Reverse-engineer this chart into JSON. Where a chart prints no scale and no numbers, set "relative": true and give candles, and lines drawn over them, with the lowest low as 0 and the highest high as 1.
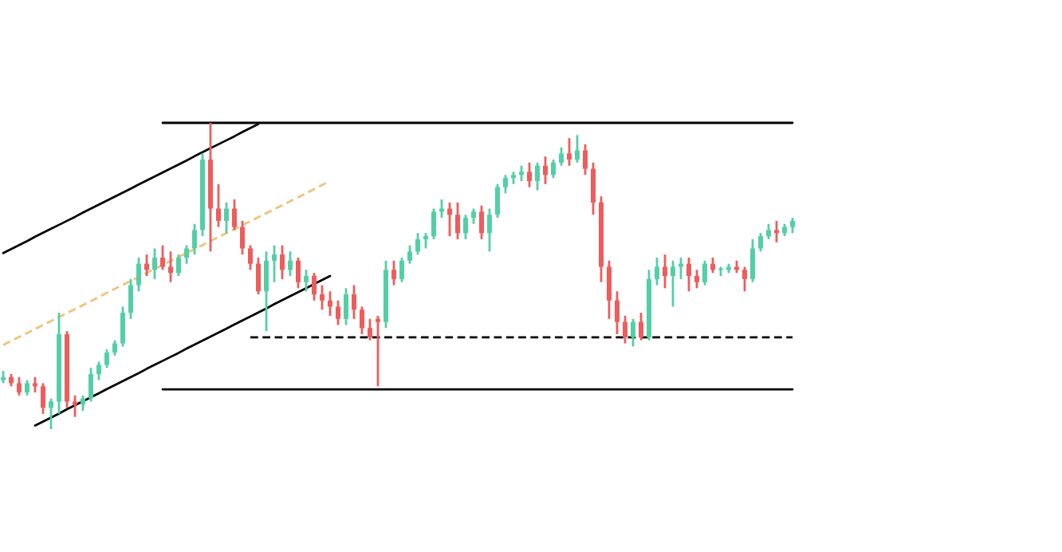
{
  "chart_data": {
    "type": "candlestick",
    "relative": true,
    "tick_labels": false,
    "categories": [
      null,
      null,
      null,
      null,
      null,
      null,
      null,
      null,
      null,
      null,
      null,
      null,
      null,
      null,
      null,
      null,
      null,
      null,
      null,
      null,
      null,
      null,
      null,
      null,
      null,
      null,
      null,
      null,
      null,
      null,
      null,
      null,
      null,
      null,
      null,
      null,
      null,
      null,
      null,
      null,
      null,
      null,
      null,
      null,
      null,
      null,
      null,
      null,
      null,
      null,
      null,
      null,
      null,
      null,
      null,
      null,
      null,
      null,
      null,
      null,
      null,
      null,
      null,
      null,
      null,
      null,
      null,
      null,
      null,
      null,
      null,
      null,
      null,
      null,
      null,
      null,
      null,
      null,
      null,
      null,
      null,
      null,
      null,
      null,
      null,
      null,
      null,
      null,
      null,
      null,
      null,
      null,
      null,
      null,
      null,
      null,
      null,
      null,
      null,
      null
    ],
    "colors": [
      "#53cfa6",
      "#f05b5b",
      "#f05b5b",
      "#53cfa6",
      "#f05b5b",
      "#f05b5b",
      "#53cfa6",
      "#53cfa6",
      "#f05b5b",
      "#f05b5b",
      "#53cfa6",
      "#53cfa6",
      "#53cfa6",
      "#53cfa6",
      "#53cfa6",
      "#53cfa6",
      "#53cfa6",
      "#53cfa6",
      "#f05b5b",
      "#53cfa6",
      "#f05b5b",
      "#f05b5b",
      "#53cfa6",
      "#53cfa6",
      "#53cfa6",
      "#53cfa6",
      "#f05b5b",
      "#f05b5b",
      "#53cfa6",
      "#f05b5b",
      "#f05b5b",
      "#f05b5b",
      "#f05b5b",
      "#53cfa6",
      "#53cfa6",
      "#f05b5b",
      "#53cfa6",
      "#f05b5b",
      "#53cfa6",
      "#f05b5b",
      "#f05b5b",
      "#f05b5b",
      "#f05b5b",
      "#53cfa6",
      "#f05b5b",
      "#f05b5b",
      "#f05b5b",
      "#f05b5b",
      "#53cfa6",
      "#f05b5b",
      "#53cfa6",
      "#53cfa6",
      "#53cfa6",
      "#53cfa6",
      "#53cfa6",
      "#53cfa6",
      "#f05b5b",
      "#f05b5b",
      "#53cfa6",
      "#53cfa6",
      "#f05b5b",
      "#53cfa6",
      "#53cfa6",
      "#53cfa6",
      "#53cfa6",
      "#53cfa6",
      "#f05b5b",
      "#53cfa6",
      "#f05b5b",
      "#53cfa6",
      "#53cfa6",
      "#f05b5b",
      "#53cfa6",
      "#f05b5b",
      "#f05b5b",
      "#f05b5b",
      "#f05b5b",
      "#f05b5b",
      "#f05b5b",
      "#53cfa6",
      "#f05b5b",
      "#53cfa6",
      "#53cfa6",
      "#f05b5b",
      "#53cfa6",
      "#53cfa6",
      "#f05b5b",
      "#f05b5b",
      "#53cfa6",
      "#f05b5b",
      "#53cfa6",
      "#53cfa6",
      "#f05b5b",
      "#f05b5b",
      "#53cfa6",
      "#53cfa6",
      "#53cfa6",
      "#f05b5b",
      "#53cfa6",
      "#53cfa6"
    ],
    "ohlc": [
      [
        0.16,
        0.19,
        0.15,
        0.17
      ],
      [
        0.17,
        0.18,
        0.14,
        0.15
      ],
      [
        0.15,
        0.17,
        0.11,
        0.12
      ],
      [
        0.12,
        0.16,
        0.11,
        0.15
      ],
      [
        0.15,
        0.17,
        0.12,
        0.14
      ],
      [
        0.14,
        0.15,
        0.05,
        0.07
      ],
      [
        0.07,
        0.1,
        0.0,
        0.09
      ],
      [
        0.09,
        0.38,
        0.05,
        0.31
      ],
      [
        0.31,
        0.32,
        0.07,
        0.09
      ],
      [
        0.09,
        0.11,
        0.04,
        0.08
      ],
      [
        0.08,
        0.11,
        0.06,
        0.1
      ],
      [
        0.1,
        0.2,
        0.09,
        0.18
      ],
      [
        0.18,
        0.22,
        0.16,
        0.21
      ],
      [
        0.21,
        0.26,
        0.2,
        0.25
      ],
      [
        0.25,
        0.29,
        0.24,
        0.28
      ],
      [
        0.28,
        0.4,
        0.27,
        0.38
      ],
      [
        0.38,
        0.49,
        0.36,
        0.47
      ],
      [
        0.47,
        0.56,
        0.45,
        0.54
      ],
      [
        0.54,
        0.57,
        0.5,
        0.52
      ],
      [
        0.52,
        0.59,
        0.49,
        0.56
      ],
      [
        0.56,
        0.6,
        0.52,
        0.53
      ],
      [
        0.53,
        0.58,
        0.48,
        0.51
      ],
      [
        0.51,
        0.57,
        0.5,
        0.56
      ],
      [
        0.56,
        0.6,
        0.54,
        0.59
      ],
      [
        0.59,
        0.67,
        0.57,
        0.65
      ],
      [
        0.65,
        0.9,
        0.63,
        0.88
      ],
      [
        0.88,
        1.0,
        0.58,
        0.72
      ],
      [
        0.72,
        0.8,
        0.66,
        0.68
      ],
      [
        0.68,
        0.74,
        0.64,
        0.72
      ],
      [
        0.72,
        0.75,
        0.65,
        0.66
      ],
      [
        0.66,
        0.68,
        0.57,
        0.59
      ],
      [
        0.59,
        0.6,
        0.52,
        0.54
      ],
      [
        0.54,
        0.56,
        0.44,
        0.45
      ],
      [
        0.45,
        0.58,
        0.32,
        0.55
      ],
      [
        0.55,
        0.6,
        0.48,
        0.57
      ],
      [
        0.57,
        0.6,
        0.49,
        0.52
      ],
      [
        0.52,
        0.58,
        0.5,
        0.55
      ],
      [
        0.55,
        0.56,
        0.46,
        0.48
      ],
      [
        0.48,
        0.52,
        0.45,
        0.5
      ],
      [
        0.5,
        0.51,
        0.42,
        0.44
      ],
      [
        0.44,
        0.47,
        0.39,
        0.42
      ],
      [
        0.42,
        0.45,
        0.37,
        0.4
      ],
      [
        0.4,
        0.42,
        0.34,
        0.36
      ],
      [
        0.36,
        0.46,
        0.34,
        0.44
      ],
      [
        0.44,
        0.47,
        0.36,
        0.39
      ],
      [
        0.39,
        0.4,
        0.31,
        0.33
      ],
      [
        0.33,
        0.36,
        0.29,
        0.3
      ],
      [
        0.36,
        0.37,
        0.14,
        0.35
      ],
      [
        0.35,
        0.55,
        0.33,
        0.52
      ],
      [
        0.52,
        0.55,
        0.47,
        0.49
      ],
      [
        0.49,
        0.56,
        0.48,
        0.55
      ],
      [
        0.55,
        0.6,
        0.54,
        0.58
      ],
      [
        0.58,
        0.64,
        0.57,
        0.62
      ],
      [
        0.62,
        0.64,
        0.59,
        0.63
      ],
      [
        0.63,
        0.72,
        0.62,
        0.71
      ],
      [
        0.71,
        0.75,
        0.69,
        0.72
      ],
      [
        0.72,
        0.74,
        0.63,
        0.7
      ],
      [
        0.7,
        0.74,
        0.62,
        0.64
      ],
      [
        0.64,
        0.7,
        0.62,
        0.69
      ],
      [
        0.69,
        0.72,
        0.67,
        0.71
      ],
      [
        0.71,
        0.73,
        0.62,
        0.64
      ],
      [
        0.64,
        0.72,
        0.58,
        0.7
      ],
      [
        0.7,
        0.8,
        0.69,
        0.79
      ],
      [
        0.79,
        0.83,
        0.77,
        0.82
      ],
      [
        0.82,
        0.84,
        0.8,
        0.83
      ],
      [
        0.83,
        0.86,
        0.81,
        0.84
      ],
      [
        0.84,
        0.87,
        0.79,
        0.81
      ],
      [
        0.81,
        0.87,
        0.78,
        0.86
      ],
      [
        0.86,
        0.89,
        0.8,
        0.83
      ],
      [
        0.83,
        0.88,
        0.82,
        0.87
      ],
      [
        0.87,
        0.92,
        0.86,
        0.9
      ],
      [
        0.9,
        0.95,
        0.86,
        0.88
      ],
      [
        0.88,
        0.96,
        0.87,
        0.91
      ],
      [
        0.91,
        0.93,
        0.83,
        0.85
      ],
      [
        0.85,
        0.87,
        0.7,
        0.74
      ],
      [
        0.74,
        0.76,
        0.48,
        0.53
      ],
      [
        0.53,
        0.55,
        0.36,
        0.42
      ],
      [
        0.42,
        0.45,
        0.31,
        0.35
      ],
      [
        0.35,
        0.37,
        0.28,
        0.3
      ],
      [
        0.3,
        0.36,
        0.27,
        0.35
      ],
      [
        0.35,
        0.38,
        0.29,
        0.3
      ],
      [
        0.3,
        0.52,
        0.29,
        0.49
      ],
      [
        0.49,
        0.56,
        0.47,
        0.53
      ],
      [
        0.53,
        0.57,
        0.46,
        0.5
      ],
      [
        0.5,
        0.55,
        0.4,
        0.53
      ],
      [
        0.53,
        0.56,
        0.49,
        0.54
      ],
      [
        0.54,
        0.56,
        0.45,
        0.5
      ],
      [
        0.5,
        0.52,
        0.46,
        0.48
      ],
      [
        0.48,
        0.55,
        0.47,
        0.54
      ],
      [
        0.54,
        0.56,
        0.51,
        0.52
      ],
      [
        0.52,
        0.53,
        0.5,
        0.52
      ],
      [
        0.52,
        0.54,
        0.51,
        0.53
      ],
      [
        0.53,
        0.55,
        0.51,
        0.52
      ],
      [
        0.52,
        0.53,
        0.45,
        0.49
      ],
      [
        0.49,
        0.62,
        0.48,
        0.59
      ],
      [
        0.59,
        0.64,
        0.58,
        0.63
      ],
      [
        0.63,
        0.67,
        0.62,
        0.65
      ],
      [
        0.65,
        0.68,
        0.61,
        0.64
      ],
      [
        0.64,
        0.67,
        0.63,
        0.66
      ],
      [
        0.66,
        0.69,
        0.64,
        0.68
      ]
    ],
    "series": [
      {
        "type": "line",
        "color": "#000000",
        "line_style": "solid",
        "values": [
          0.575,
          0.588,
          0.601,
          0.614,
          0.628,
          0.641,
          0.654,
          0.667,
          0.68,
          0.693,
          0.707,
          0.72,
          0.733,
          0.746,
          0.759,
          0.772,
          0.785,
          0.799,
          0.812,
          0.825,
          0.838,
          0.851,
          0.864,
          0.877,
          0.891,
          0.904,
          0.917,
          0.93,
          0.943,
          0.956,
          0.97,
          0.983,
          0.996,
          null,
          null,
          null,
          null,
          null,
          null,
          null,
          null,
          null,
          null,
          null,
          null,
          null,
          null,
          null,
          null,
          null,
          null,
          null,
          null,
          null,
          null,
          null,
          null,
          null,
          null,
          null,
          null,
          null,
          null,
          null,
          null,
          null,
          null,
          null,
          null,
          null,
          null,
          null,
          null,
          null,
          null,
          null,
          null,
          null,
          null,
          null,
          null,
          null,
          null,
          null,
          null,
          null,
          null,
          null,
          null,
          null,
          null,
          null,
          null,
          null,
          null,
          null,
          null,
          null,
          null,
          null
        ]
      },
      {
        "type": "line",
        "color": "#000000",
        "line_style": "solid",
        "values": [
          null,
          null,
          null,
          null,
          0.012,
          0.025,
          0.038,
          0.051,
          0.065,
          0.078,
          0.091,
          0.104,
          0.117,
          0.131,
          0.144,
          0.157,
          0.17,
          0.183,
          0.197,
          0.21,
          0.223,
          0.236,
          0.249,
          0.263,
          0.276,
          0.289,
          0.302,
          0.315,
          0.328,
          0.342,
          0.355,
          0.368,
          0.381,
          0.394,
          0.408,
          0.421,
          0.434,
          0.447,
          0.46,
          0.474,
          0.487,
          0.5,
          null,
          null,
          null,
          null,
          null,
          null,
          null,
          null,
          null,
          null,
          null,
          null,
          null,
          null,
          null,
          null,
          null,
          null,
          null,
          null,
          null,
          null,
          null,
          null,
          null,
          null,
          null,
          null,
          null,
          null,
          null,
          null,
          null,
          null,
          null,
          null,
          null,
          null,
          null,
          null,
          null,
          null,
          null,
          null,
          null,
          null,
          null,
          null,
          null,
          null,
          null,
          null,
          null,
          null,
          null,
          null,
          null,
          null
        ]
      },
      {
        "type": "line",
        "color": "#f0c27a",
        "line_style": "dashed",
        "values": [
          0.275,
          0.288,
          0.301,
          0.314,
          0.327,
          0.34,
          0.353,
          0.366,
          0.379,
          0.392,
          0.405,
          0.418,
          0.431,
          0.445,
          0.458,
          0.471,
          0.484,
          0.497,
          0.51,
          0.523,
          0.536,
          0.549,
          0.562,
          0.575,
          0.588,
          0.601,
          0.614,
          0.627,
          0.64,
          0.653,
          0.666,
          0.679,
          0.692,
          0.705,
          0.718,
          0.731,
          0.744,
          0.757,
          0.77,
          0.784,
          0.797,
          0.81,
          null,
          null,
          null,
          null,
          null,
          null,
          null,
          null,
          null,
          null,
          null,
          null,
          null,
          null,
          null,
          null,
          null,
          null,
          null,
          null,
          null,
          null,
          null,
          null,
          null,
          null,
          null,
          null,
          null,
          null,
          null,
          null,
          null,
          null,
          null,
          null,
          null,
          null,
          null,
          null,
          null,
          null,
          null,
          null,
          null,
          null,
          null,
          null,
          null,
          null,
          null,
          null,
          null,
          null,
          null,
          null,
          null,
          null
        ]
      },
      {
        "type": "line",
        "color": "#000000",
        "line_style": "solid",
        "values": [
          null,
          null,
          null,
          null,
          null,
          null,
          null,
          null,
          null,
          null,
          null,
          null,
          null,
          null,
          null,
          null,
          null,
          null,
          null,
          null,
          1.0,
          1.0,
          1.0,
          1.0,
          1.0,
          1.0,
          1.0,
          1.0,
          1.0,
          1.0,
          1.0,
          1.0,
          1.0,
          1.0,
          1.0,
          1.0,
          1.0,
          1.0,
          1.0,
          1.0,
          1.0,
          1.0,
          1.0,
          1.0,
          1.0,
          1.0,
          1.0,
          1.0,
          1.0,
          1.0,
          1.0,
          1.0,
          1.0,
          1.0,
          1.0,
          1.0,
          1.0,
          1.0,
          1.0,
          1.0,
          1.0,
          1.0,
          1.0,
          1.0,
          1.0,
          1.0,
          1.0,
          1.0,
          1.0,
          1.0,
          1.0,
          1.0,
          1.0,
          1.0,
          1.0,
          1.0,
          1.0,
          1.0,
          1.0,
          1.0,
          1.0,
          1.0,
          1.0,
          1.0,
          1.0,
          1.0,
          1.0,
          1.0,
          1.0,
          1.0,
          1.0,
          1.0,
          1.0,
          1.0,
          1.0,
          1.0,
          1.0,
          1.0,
          1.0,
          1.0
        ]
      },
      {
        "type": "line",
        "color": "#000000",
        "line_style": "solid",
        "values": [
          null,
          null,
          null,
          null,
          null,
          null,
          null,
          null,
          null,
          null,
          null,
          null,
          null,
          null,
          null,
          null,
          null,
          null,
          null,
          null,
          0.13,
          0.13,
          0.13,
          0.13,
          0.13,
          0.13,
          0.13,
          0.13,
          0.13,
          0.13,
          0.13,
          0.13,
          0.13,
          0.13,
          0.13,
          0.13,
          0.13,
          0.13,
          0.13,
          0.13,
          0.13,
          0.13,
          0.13,
          0.13,
          0.13,
          0.13,
          0.13,
          0.13,
          0.13,
          0.13,
          0.13,
          0.13,
          0.13,
          0.13,
          0.13,
          0.13,
          0.13,
          0.13,
          0.13,
          0.13,
          0.13,
          0.13,
          0.13,
          0.13,
          0.13,
          0.13,
          0.13,
          0.13,
          0.13,
          0.13,
          0.13,
          0.13,
          0.13,
          0.13,
          0.13,
          0.13,
          0.13,
          0.13,
          0.13,
          0.13,
          0.13,
          0.13,
          0.13,
          0.13,
          0.13,
          0.13,
          0.13,
          0.13,
          0.13,
          0.13,
          0.13,
          0.13,
          0.13,
          0.13,
          0.13,
          0.13,
          0.13,
          0.13,
          0.13,
          0.13
        ]
      },
      {
        "type": "line",
        "color": "#000000",
        "line_style": "dashed",
        "values": [
          null,
          null,
          null,
          null,
          null,
          null,
          null,
          null,
          null,
          null,
          null,
          null,
          null,
          null,
          null,
          null,
          null,
          null,
          null,
          null,
          null,
          null,
          null,
          null,
          null,
          null,
          null,
          null,
          null,
          null,
          null,
          0.3,
          0.3,
          0.3,
          0.3,
          0.3,
          0.3,
          0.3,
          0.3,
          0.3,
          0.3,
          0.3,
          0.3,
          0.3,
          0.3,
          0.3,
          0.3,
          0.3,
          0.3,
          0.3,
          0.3,
          0.3,
          0.3,
          0.3,
          0.3,
          0.3,
          0.3,
          0.3,
          0.3,
          0.3,
          0.3,
          0.3,
          0.3,
          0.3,
          0.3,
          0.3,
          0.3,
          0.3,
          0.3,
          0.3,
          0.3,
          0.3,
          0.3,
          0.3,
          0.3,
          0.3,
          0.3,
          0.3,
          0.3,
          0.3,
          0.3,
          0.3,
          0.3,
          0.3,
          0.3,
          0.3,
          0.3,
          0.3,
          0.3,
          0.3,
          0.3,
          0.3,
          0.3,
          0.3,
          0.3,
          0.3,
          0.3,
          0.3,
          0.3,
          0.3
        ]
      }
    ]
  }
}
